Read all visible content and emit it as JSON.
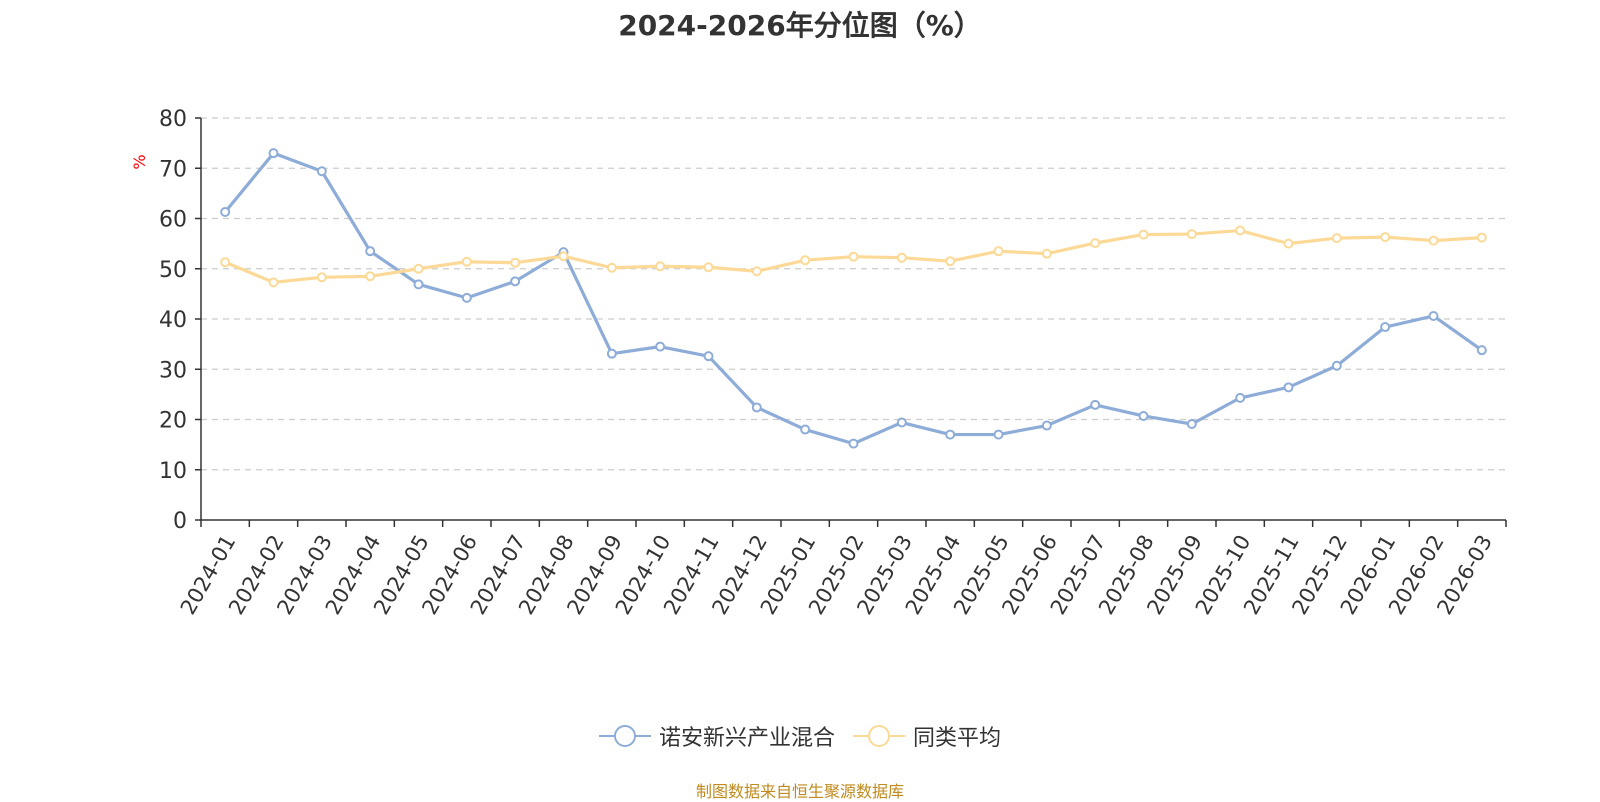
{
  "title": "2024-2026年分位图（%）",
  "source_note": "制图数据来自恒生聚源数据库",
  "colors": {
    "series_a": "#8eacd8",
    "series_b": "#fcd996",
    "grid": "#cccccc",
    "axis": "#333333",
    "unit": "#ff0000"
  },
  "chart_data": {
    "type": "line",
    "title": "2024-2026年分位图（%）",
    "ylabel": "%",
    "ylim": [
      0,
      80
    ],
    "yticks": [
      0,
      10,
      20,
      30,
      40,
      50,
      60,
      70,
      80
    ],
    "grid": true,
    "legend_position": "bottom",
    "categories": [
      "2024-01",
      "2024-02",
      "2024-03",
      "2024-04",
      "2024-05",
      "2024-06",
      "2024-07",
      "2024-08",
      "2024-09",
      "2024-10",
      "2024-11",
      "2024-12",
      "2025-01",
      "2025-02",
      "2025-03",
      "2025-04",
      "2025-05",
      "2025-06",
      "2025-07",
      "2025-08",
      "2025-09",
      "2025-10",
      "2025-11",
      "2025-12",
      "2026-01",
      "2026-02",
      "2026-03"
    ],
    "series": [
      {
        "name": "诺安新兴产业混合",
        "values": [
          61.3,
          73.0,
          69.4,
          53.5,
          46.9,
          44.2,
          47.5,
          53.3,
          33.1,
          34.5,
          32.6,
          22.4,
          18.0,
          15.2,
          19.4,
          17.0,
          17.0,
          18.8,
          22.9,
          20.7,
          19.1,
          24.3,
          26.4,
          30.7,
          38.4,
          40.6,
          33.8
        ]
      },
      {
        "name": "同类平均",
        "values": [
          51.3,
          47.3,
          48.3,
          48.5,
          50.0,
          51.4,
          51.2,
          52.5,
          50.2,
          50.5,
          50.3,
          49.5,
          51.7,
          52.4,
          52.2,
          51.5,
          53.5,
          53.0,
          55.1,
          56.8,
          56.9,
          57.6,
          55.0,
          56.1,
          56.3,
          55.6,
          56.2
        ]
      }
    ]
  }
}
